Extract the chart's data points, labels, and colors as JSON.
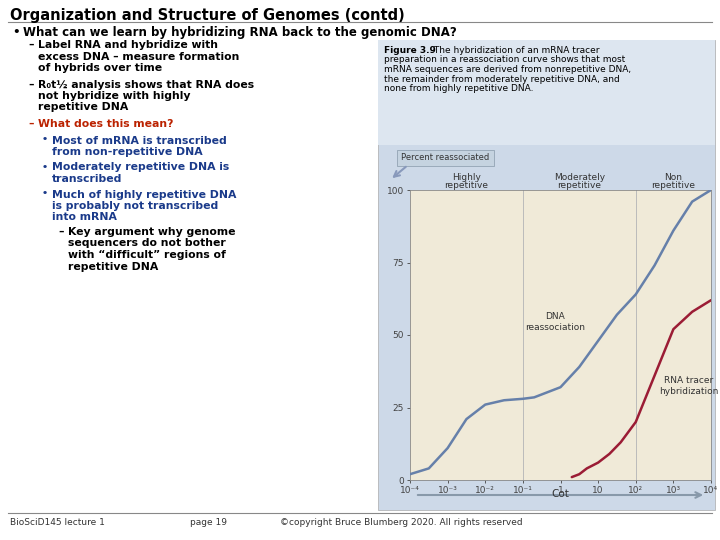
{
  "title": "Organization and Structure of Genomes (contd)",
  "bg_color": "#ffffff",
  "bullet1": "What can we learn by hybridizing RNA back to the genomic DNA?",
  "sub1a_line1": "Label RNA and hybridize with",
  "sub1a_line2": "excess DNA – measure formation",
  "sub1a_line3": "of hybrids over time",
  "sub1b_line1": "R₀t½ analysis shows that RNA does",
  "sub1b_line2": "not hybridize with highly",
  "sub1b_line3": "repetitive DNA",
  "sub1c": "What does this mean?",
  "sub2a_line1": "Most of mRNA is transcribed",
  "sub2a_line2": "from non-repetitive DNA",
  "sub2b_line1": "Moderately repetitive DNA is",
  "sub2b_line2": "transcribed",
  "sub2c_line1": "Much of highly repetitive DNA",
  "sub2c_line2": "is probably not transcribed",
  "sub2c_line3": "into mRNA",
  "sub3_line1": "Key argument why genome",
  "sub3_line2": "sequencers do not bother",
  "sub3_line3": "with “difficult” regions of",
  "sub3_line4": "repetitive DNA",
  "fig_caption_bold": "Figure 3.9",
  "fig_caption_rest": " The hybridization of an mRNA tracer preparation in a reassociation curve shows that most mRNA sequences are derived from nonrepetitive DNA, the remainder from moderately repetitive DNA, and none from highly repetitive DNA.",
  "fig_bg": "#cdd9e8",
  "caption_bg": "#dde6f0",
  "col_label_bg": "#f0ead8",
  "plot_bg": "#cdd9e8",
  "col1_label_l1": "Highly",
  "col1_label_l2": "repetitive",
  "col2_label_l1": "Moderately",
  "col2_label_l2": "repetitive",
  "col3_label_l1": "Non",
  "col3_label_l2": "repetitive",
  "ytick_labels": [
    "0",
    "25",
    "50",
    "75",
    "100"
  ],
  "ytick_vals": [
    0,
    25,
    50,
    75,
    100
  ],
  "xtick_labels": [
    "10⁻⁴",
    "10⁻³",
    "10⁻²",
    "10⁻¹",
    "1",
    "10",
    "10²",
    "10³",
    "10⁴"
  ],
  "xlabel": "Cot",
  "percent_label": "Percent reassociated",
  "dna_label_l1": "DNA",
  "dna_label_l2": "reassociation",
  "rna_label_l1": "RNA tracer",
  "rna_label_l2": "hybridization",
  "dna_color": "#6680aa",
  "rna_color": "#9b1c35",
  "footer_left": "BioSciD145 lecture 1",
  "footer_center": "page 19",
  "footer_right": "©copyright Bruce Blumberg 2020. All rights reserved",
  "black": "#000000",
  "red_col": "#bb2200",
  "blue_col": "#1a3a8a",
  "gray_line": "#888888",
  "text_gray": "#333333"
}
